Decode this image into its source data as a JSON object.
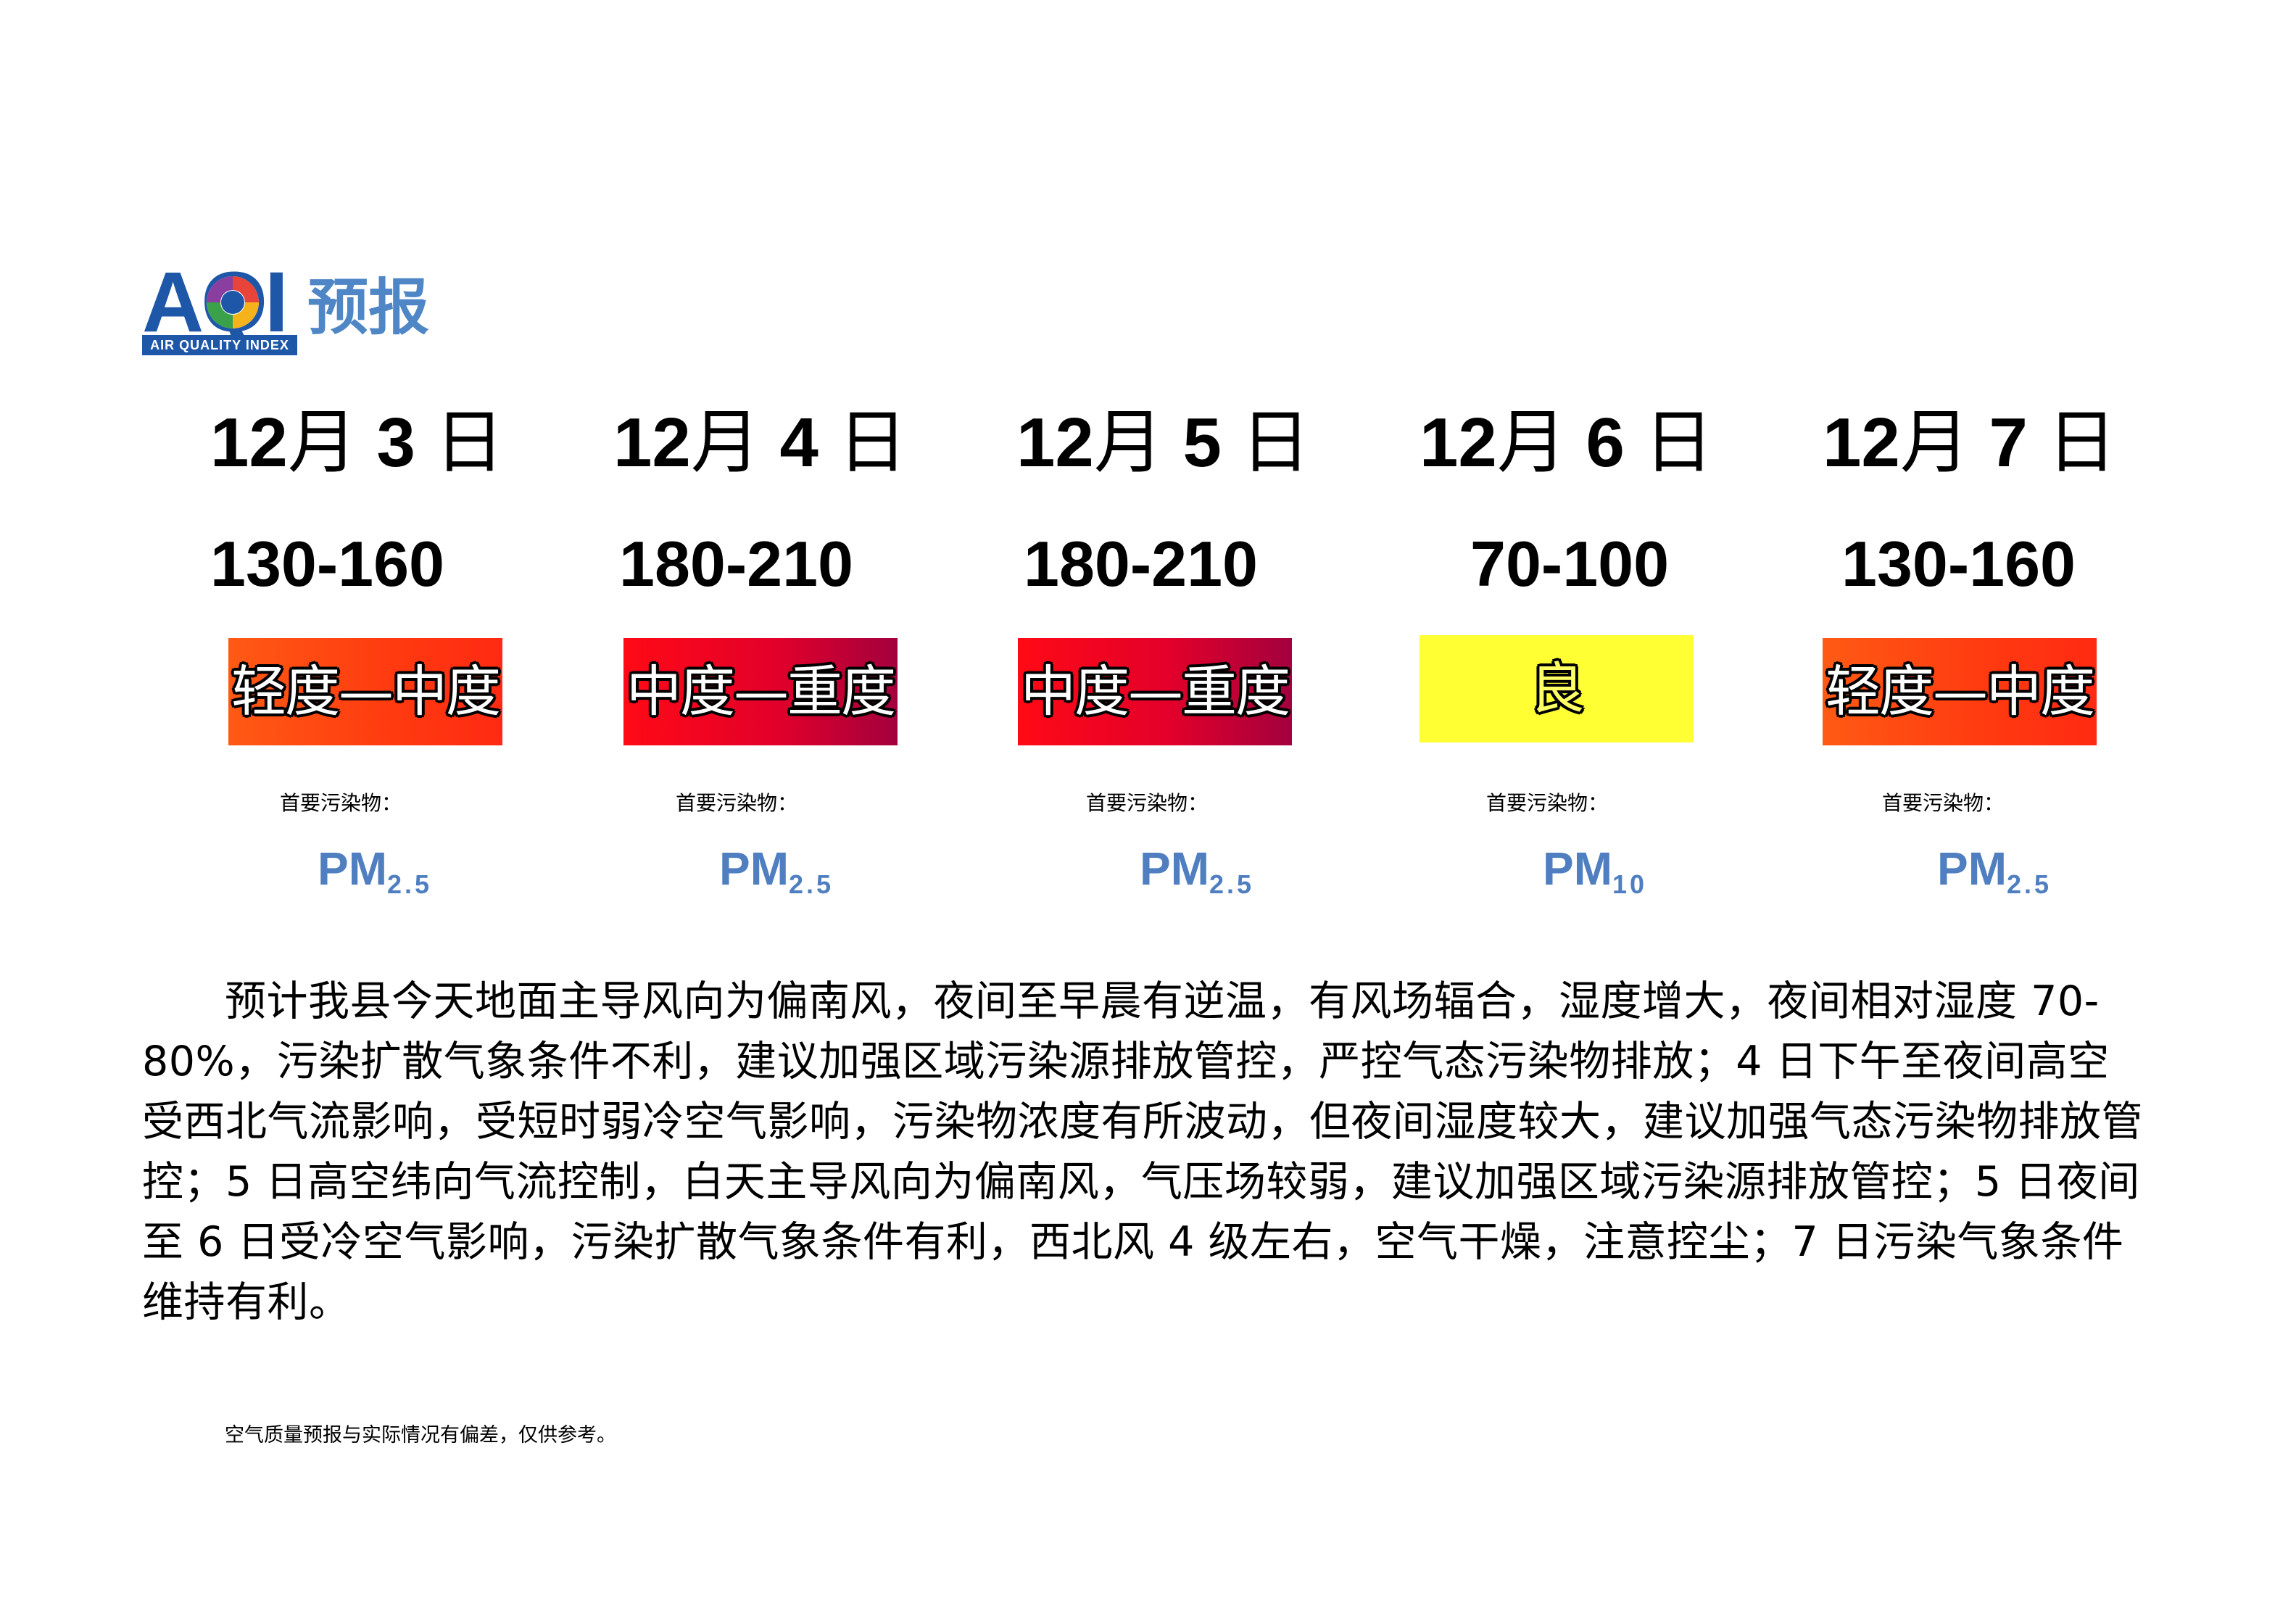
{
  "logo": {
    "mark": "AQI",
    "subtitle": "AIR QUALITY INDEX",
    "title": "预报"
  },
  "days": [
    {
      "month": "12",
      "month_unit": "月",
      "day": "3",
      "day_unit": "日",
      "range": "130-160",
      "level": "轻度—中度",
      "pollutant_label": "首要污染物：",
      "pollutant_main": "PM",
      "pollutant_sub": "2.5"
    },
    {
      "month": "12",
      "month_unit": "月",
      "day": "4",
      "day_unit": "日",
      "range": "180-210",
      "level": "中度—重度",
      "pollutant_label": "首要污染物：",
      "pollutant_main": "PM",
      "pollutant_sub": "2.5"
    },
    {
      "month": "12",
      "month_unit": "月",
      "day": "5",
      "day_unit": "日",
      "range": "180-210",
      "level": "中度—重度",
      "pollutant_label": "首要污染物：",
      "pollutant_main": "PM",
      "pollutant_sub": "2.5"
    },
    {
      "month": "12",
      "month_unit": "月",
      "day": "6",
      "day_unit": "日",
      "range": "70-100",
      "level": "良",
      "pollutant_label": "首要污染物：",
      "pollutant_main": "PM",
      "pollutant_sub": "10"
    },
    {
      "month": "12",
      "month_unit": "月",
      "day": "7",
      "day_unit": "日",
      "range": "130-160",
      "level": "轻度—中度",
      "pollutant_label": "首要污染物：",
      "pollutant_main": "PM",
      "pollutant_sub": "2.5"
    }
  ],
  "level_colors": {
    "轻度—中度": "#ff4b12",
    "中度—重度": "#e3002a",
    "良": "#ffff33"
  },
  "forecast_text": "预计我县今天地面主导风向为偏南风，夜间至早晨有逆温，有风场辐合，湿度增大，夜间相对湿度 70-80%，污染扩散气象条件不利，建议加强区域污染源排放管控，严控气态污染物排放；4 日下午至夜间高空受西北气流影响，受短时弱冷空气影响，污染物浓度有所波动，但夜间湿度较大，建议加强气态污染物排放管控；5 日高空纬向气流控制，白天主导风向为偏南风，气压场较弱，建议加强区域污染源排放管控；5 日夜间至 6 日受冷空气影响，污染扩散气象条件有利，西北风 4 级左右，空气干燥，注意控尘；7 日污染气象条件维持有利。",
  "disclaimer": "空气质量预报与实际情况有偏差，仅供参考。"
}
